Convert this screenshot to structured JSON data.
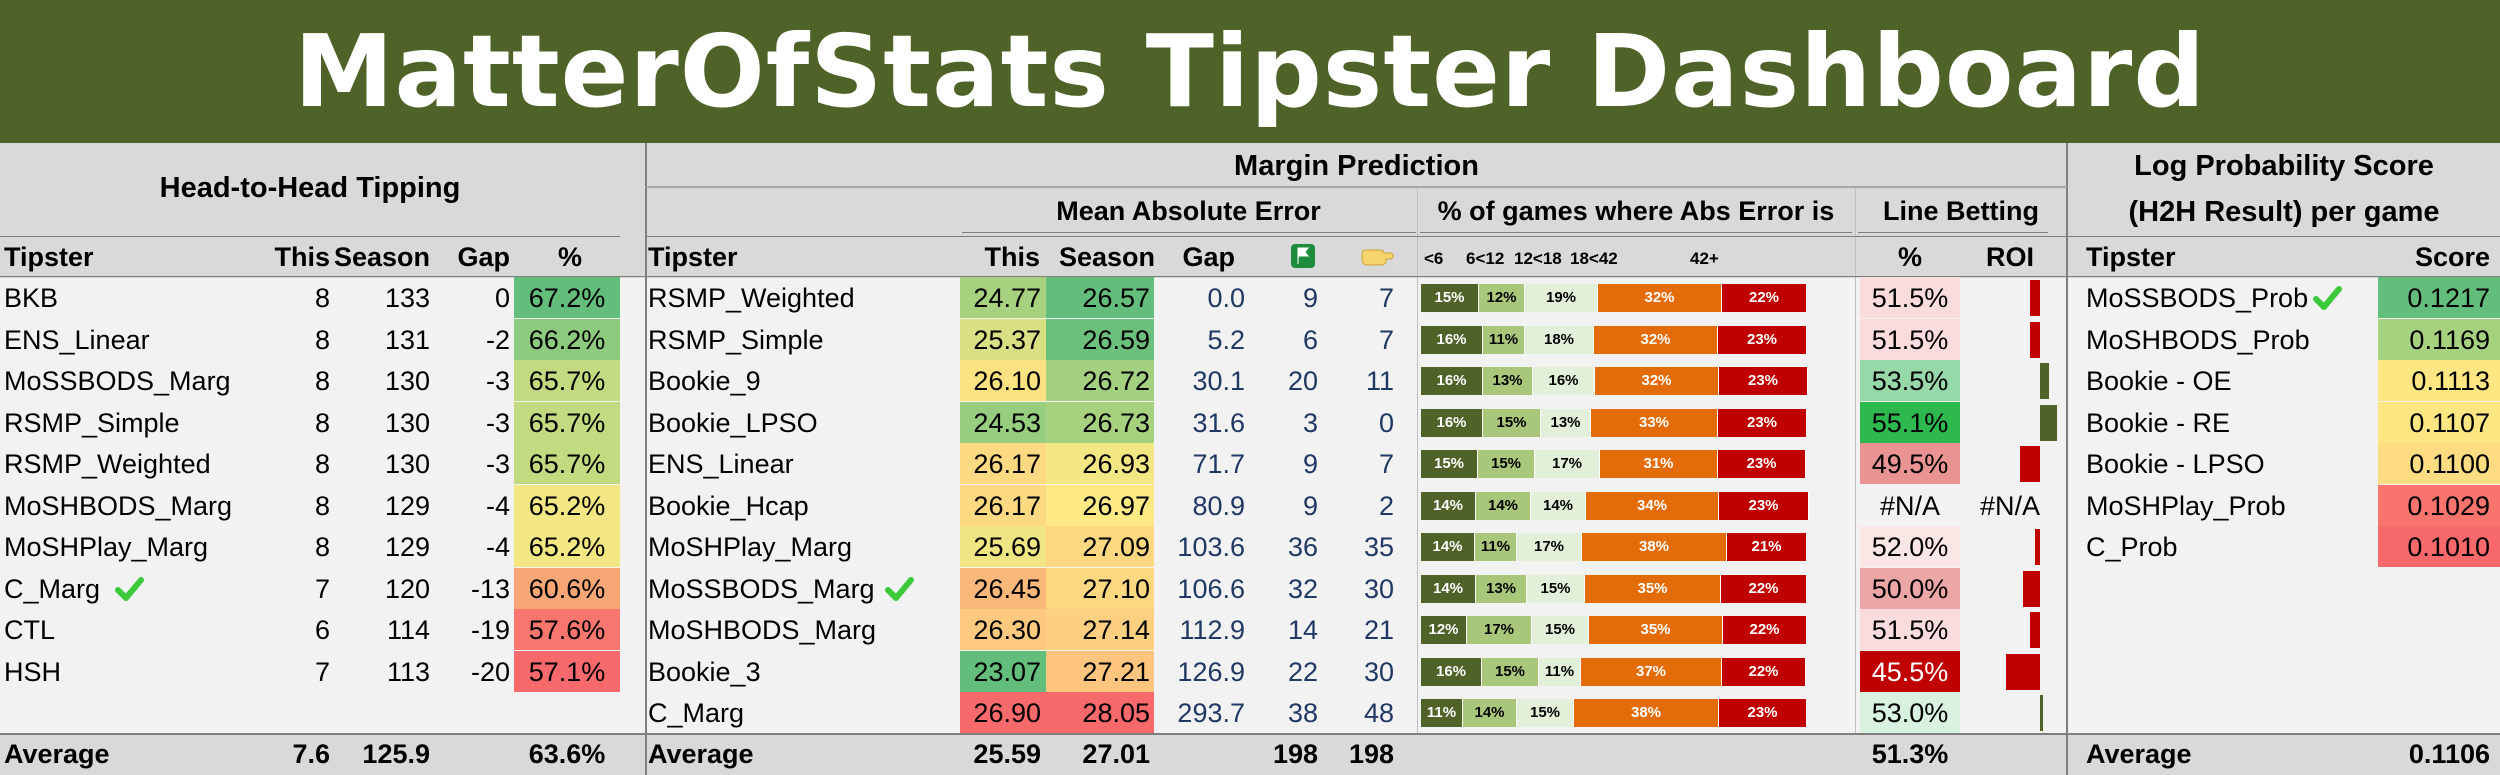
{
  "title": "MatterOfStats Tipster Dashboard",
  "h2h": {
    "heading": "Head-to-Head Tipping",
    "cols": [
      "Tipster",
      "This",
      "Season",
      "Gap",
      "%"
    ],
    "rows": [
      {
        "tipster": "BKB",
        "this": "8",
        "season": "133",
        "gap": "0",
        "pct": "67.2%",
        "color": "#63be7b",
        "check": false
      },
      {
        "tipster": "ENS_Linear",
        "this": "8",
        "season": "131",
        "gap": "-2",
        "pct": "66.2%",
        "color": "#8ccb7e",
        "check": false
      },
      {
        "tipster": "MoSSBODS_Marg",
        "this": "8",
        "season": "130",
        "gap": "-3",
        "pct": "65.7%",
        "color": "#c2da80",
        "check": false
      },
      {
        "tipster": "RSMP_Simple",
        "this": "8",
        "season": "130",
        "gap": "-3",
        "pct": "65.7%",
        "color": "#c2da80",
        "check": false
      },
      {
        "tipster": "RSMP_Weighted",
        "this": "8",
        "season": "130",
        "gap": "-3",
        "pct": "65.7%",
        "color": "#c2da80",
        "check": false
      },
      {
        "tipster": "MoSHBODS_Marg",
        "this": "8",
        "season": "129",
        "gap": "-4",
        "pct": "65.2%",
        "color": "#f3e784",
        "check": false
      },
      {
        "tipster": "MoSHPlay_Marg",
        "this": "8",
        "season": "129",
        "gap": "-4",
        "pct": "65.2%",
        "color": "#f3e784",
        "check": false
      },
      {
        "tipster": "C_Marg",
        "this": "7",
        "season": "120",
        "gap": "-13",
        "pct": "60.6%",
        "color": "#f9a676",
        "check": true
      },
      {
        "tipster": "CTL",
        "this": "6",
        "season": "114",
        "gap": "-19",
        "pct": "57.6%",
        "color": "#f8766e",
        "check": false
      },
      {
        "tipster": "HSH",
        "this": "7",
        "season": "113",
        "gap": "-20",
        "pct": "57.1%",
        "color": "#f8696b",
        "check": false
      }
    ],
    "average": {
      "label": "Average",
      "this": "7.6",
      "season": "125.9",
      "pct": "63.6%"
    }
  },
  "margin": {
    "heading": "Margin Prediction",
    "mae_heading": "Mean Absolute Error",
    "pct_heading": "% of games where Abs Error is",
    "line_heading": "Line Betting",
    "cols": [
      "Tipster",
      "This",
      "Season",
      "Gap"
    ],
    "icon1": "green-flag-icon",
    "icon2": "yellow-hand-icon",
    "bucket_labels": [
      "<6",
      "6<12",
      "12<18",
      "18<42",
      "42+"
    ],
    "line_cols": [
      "%",
      "ROI"
    ],
    "rows": [
      {
        "tipster": "RSMP_Weighted",
        "this": "24.77",
        "season": "26.57",
        "gap": "0.0",
        "n1": "9",
        "n2": "7",
        "this_color": "#a6d27f",
        "season_color": "#63be7b",
        "buckets": [
          "15%",
          "12%",
          "19%",
          "32%",
          "22%"
        ],
        "bucket_vals": [
          15,
          12,
          19,
          32,
          22
        ],
        "line_pct": "51.5%",
        "line_color": "#fbdcdc",
        "roi": -0.06,
        "check": false
      },
      {
        "tipster": "RSMP_Simple",
        "this": "25.37",
        "season": "26.59",
        "gap": "5.2",
        "n1": "6",
        "n2": "7",
        "this_color": "#d8e083",
        "season_color": "#6bc07b",
        "buckets": [
          "16%",
          "11%",
          "18%",
          "32%",
          "23%"
        ],
        "bucket_vals": [
          16,
          11,
          18,
          32,
          23
        ],
        "line_pct": "51.5%",
        "line_color": "#fbdcdc",
        "roi": -0.06,
        "check": false
      },
      {
        "tipster": "Bookie_9",
        "this": "26.10",
        "season": "26.72",
        "gap": "30.1",
        "n1": "20",
        "n2": "11",
        "this_color": "#fde282",
        "season_color": "#a3d17f",
        "buckets": [
          "16%",
          "13%",
          "16%",
          "32%",
          "23%"
        ],
        "bucket_vals": [
          16,
          13,
          16,
          32,
          23
        ],
        "line_pct": "53.5%",
        "line_color": "#97d8a9",
        "roi": 0.05,
        "check": false
      },
      {
        "tipster": "Bookie_LPSO",
        "this": "24.53",
        "season": "26.73",
        "gap": "31.6",
        "n1": "3",
        "n2": "0",
        "this_color": "#96cd7e",
        "season_color": "#a6d27f",
        "buckets": [
          "16%",
          "15%",
          "13%",
          "33%",
          "23%"
        ],
        "bucket_vals": [
          16,
          15,
          13,
          33,
          23
        ],
        "line_pct": "55.1%",
        "line_color": "#2db94d",
        "roi": 0.1,
        "check": false
      },
      {
        "tipster": "ENS_Linear",
        "this": "26.17",
        "season": "26.93",
        "gap": "71.7",
        "n1": "9",
        "n2": "7",
        "this_color": "#fdd981",
        "season_color": "#f3e784",
        "buckets": [
          "15%",
          "15%",
          "17%",
          "31%",
          "23%"
        ],
        "bucket_vals": [
          15,
          15,
          17,
          31,
          23
        ],
        "line_pct": "49.5%",
        "line_color": "#e99393",
        "roi": -0.12,
        "check": false
      },
      {
        "tipster": "Bookie_Hcap",
        "this": "26.17",
        "season": "26.97",
        "gap": "80.9",
        "n1": "9",
        "n2": "2",
        "this_color": "#fdd981",
        "season_color": "#ffe984",
        "buckets": [
          "14%",
          "14%",
          "14%",
          "34%",
          "23%"
        ],
        "bucket_vals": [
          14,
          14,
          14,
          34,
          23
        ],
        "line_pct": "#N/A",
        "line_color": "#f2f2f2",
        "roi": null,
        "roi_text": "#N/A",
        "check": false
      },
      {
        "tipster": "MoSHPlay_Marg",
        "this": "25.69",
        "season": "27.09",
        "gap": "103.6",
        "n1": "36",
        "n2": "35",
        "this_color": "#f0e583",
        "season_color": "#fed881",
        "buckets": [
          "14%",
          "11%",
          "17%",
          "38%",
          "21%"
        ],
        "bucket_vals": [
          14,
          11,
          17,
          38,
          21
        ],
        "line_pct": "52.0%",
        "line_color": "#fbe6e6",
        "roi": -0.03,
        "check": false
      },
      {
        "tipster": "MoSSBODS_Marg",
        "this": "26.45",
        "season": "27.10",
        "gap": "106.6",
        "n1": "32",
        "n2": "30",
        "this_color": "#fbb87b",
        "season_color": "#fed881",
        "buckets": [
          "14%",
          "13%",
          "15%",
          "35%",
          "22%"
        ],
        "bucket_vals": [
          14,
          13,
          15,
          35,
          22
        ],
        "line_pct": "50.0%",
        "line_color": "#eda6a6",
        "roi": -0.1,
        "check": true
      },
      {
        "tipster": "MoSHBODS_Marg",
        "this": "26.30",
        "season": "27.14",
        "gap": "112.9",
        "n1": "14",
        "n2": "21",
        "this_color": "#fcc97e",
        "season_color": "#fdcf80",
        "buckets": [
          "12%",
          "17%",
          "15%",
          "35%",
          "22%"
        ],
        "bucket_vals": [
          12,
          17,
          15,
          35,
          22
        ],
        "line_pct": "51.5%",
        "line_color": "#fbdcdc",
        "roi": -0.06,
        "check": false
      },
      {
        "tipster": "Bookie_3",
        "this": "23.07",
        "season": "27.21",
        "gap": "126.9",
        "n1": "22",
        "n2": "30",
        "this_color": "#63be7b",
        "season_color": "#fdc57d",
        "buckets": [
          "16%",
          "15%",
          "11%",
          "37%",
          "22%"
        ],
        "bucket_vals": [
          16,
          15,
          11,
          37,
          22
        ],
        "line_pct": "45.5%",
        "line_color": "#c00000",
        "roi": -0.2,
        "check": false
      },
      {
        "tipster": "C_Marg",
        "this": "26.90",
        "season": "28.05",
        "gap": "293.7",
        "n1": "38",
        "n2": "48",
        "this_color": "#f8696b",
        "season_color": "#f8696b",
        "buckets": [
          "11%",
          "14%",
          "15%",
          "38%",
          "23%"
        ],
        "bucket_vals": [
          11,
          14,
          15,
          38,
          23
        ],
        "line_pct": "53.0%",
        "line_color": "#d9f2df",
        "roi": 0.02,
        "check": false
      }
    ],
    "average": {
      "label": "Average",
      "this": "25.59",
      "season": "27.01",
      "n1": "198",
      "n2": "198",
      "line_pct": "51.3%"
    }
  },
  "logprob": {
    "heading_line1": "Log Probability Score",
    "heading_line2": "(H2H Result) per game",
    "cols": [
      "Tipster",
      "Score"
    ],
    "rows": [
      {
        "tipster": "MoSSBODS_Prob",
        "score": "0.1217",
        "color": "#63be7b",
        "check": true
      },
      {
        "tipster": "MoSHBODS_Prob",
        "score": "0.1169",
        "color": "#a6d27f",
        "check": false
      },
      {
        "tipster": "Bookie - OE",
        "score": "0.1113",
        "color": "#fee783",
        "check": false
      },
      {
        "tipster": "Bookie - RE",
        "score": "0.1107",
        "color": "#fee783",
        "check": false
      },
      {
        "tipster": "Bookie - LPSO",
        "score": "0.1100",
        "color": "#fddc82",
        "check": false
      },
      {
        "tipster": "MoSHPlay_Prob",
        "score": "0.1029",
        "color": "#f8746d",
        "check": false
      },
      {
        "tipster": "C_Prob",
        "score": "0.1010",
        "color": "#f8696b",
        "check": false
      }
    ],
    "average": {
      "label": "Average",
      "score": "0.1106"
    }
  },
  "colors": {
    "title_bg": "#4f6228",
    "bucket": [
      "#4f6228",
      "#a9c77b",
      "#e2efd9",
      "#e36c09",
      "#c00000"
    ],
    "roi_pos": "#4f6228",
    "roi_neg": "#c00000"
  }
}
